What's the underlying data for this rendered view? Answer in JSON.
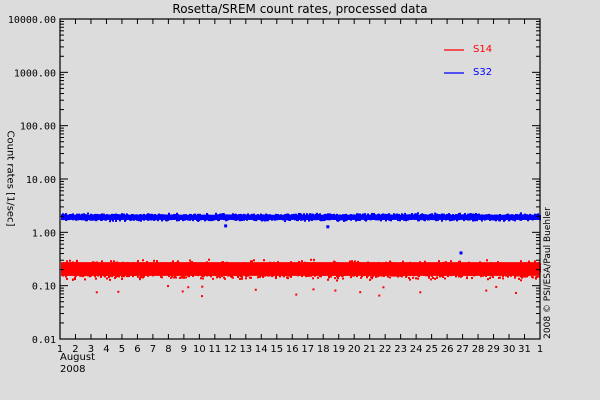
{
  "chart_data": {
    "type": "scatter",
    "title": "Rosetta/SREM count rates, processed data",
    "xlabel": "August 2008",
    "ylabel": "Count rates [1/sec]",
    "yscale": "log",
    "ylim": [
      0.01,
      10000
    ],
    "y_tick_labels": [
      "10000.00",
      "1000.00",
      "100.00",
      "10.00",
      "1.00",
      "0.10",
      "0.01"
    ],
    "x_tick_labels": [
      "1",
      "2",
      "3",
      "4",
      "5",
      "6",
      "7",
      "8",
      "9",
      "10",
      "11",
      "12",
      "13",
      "14",
      "15",
      "16",
      "17",
      "18",
      "19",
      "20",
      "21",
      "22",
      "23",
      "24",
      "25",
      "26",
      "27",
      "28",
      "29",
      "30",
      "31",
      "1"
    ],
    "xlim_days": [
      1,
      32
    ],
    "x_month_label": "August",
    "x_year_label": "2008",
    "legend": {
      "position": "upper-right",
      "entries": [
        {
          "name": "S14",
          "color": "#ff0000"
        },
        {
          "name": "S32",
          "color": "#0000ff"
        }
      ]
    },
    "series": [
      {
        "name": "S14",
        "color": "#ff0000",
        "typical_value": 0.22,
        "band_range": [
          0.12,
          0.32
        ],
        "outliers_low": [
          0.07,
          0.08,
          0.09
        ],
        "note": "dense band across all of August"
      },
      {
        "name": "S32",
        "color": "#0000ff",
        "typical_value": 1.9,
        "band_range": [
          1.6,
          2.3
        ],
        "outliers": [
          {
            "day": 26.8,
            "value": 0.42
          },
          {
            "day": 11.6,
            "value": 1.35
          },
          {
            "day": 18.2,
            "value": 1.3
          }
        ],
        "note": "dense band across all of August"
      }
    ],
    "grid": false,
    "credit": "2008 © PSI/ESA/Paul Buehler"
  }
}
